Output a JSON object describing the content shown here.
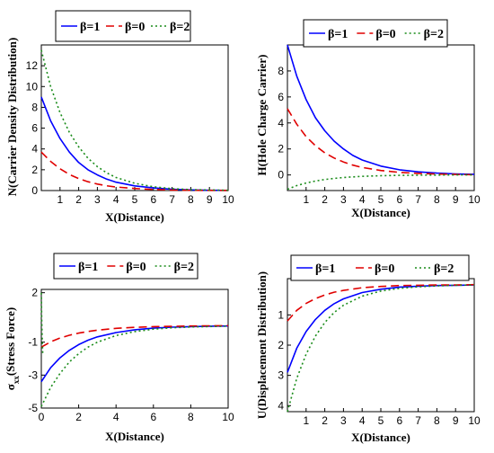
{
  "chart_data": [
    {
      "type": "line",
      "xlabel": "X(Distance)",
      "ylabel": "N(Carrier Density Distribution)",
      "xlim": [
        0,
        10
      ],
      "ylim": [
        0,
        14
      ],
      "xticks": [
        "1",
        "2",
        "3",
        "4",
        "5",
        "6",
        "7",
        "8",
        "9",
        "10"
      ],
      "yticks": [
        "0",
        "2",
        "4",
        "6",
        "8",
        "10",
        "12"
      ],
      "legend": "top",
      "series": [
        {
          "name": "β=1",
          "color": "#0000ff",
          "dash": "solid",
          "x": [
            0,
            0.5,
            1,
            1.5,
            2,
            2.5,
            3,
            3.5,
            4,
            5,
            6,
            7,
            8,
            9,
            10
          ],
          "y": [
            9.0,
            6.7,
            5.0,
            3.7,
            2.7,
            2.0,
            1.5,
            1.1,
            0.8,
            0.45,
            0.25,
            0.12,
            0.06,
            0.03,
            0.02
          ]
        },
        {
          "name": "β=0",
          "color": "#e00000",
          "dash": "dashed",
          "x": [
            0,
            0.5,
            1,
            1.5,
            2,
            2.5,
            3,
            3.5,
            4,
            5,
            6,
            7,
            8,
            9,
            10
          ],
          "y": [
            3.7,
            2.8,
            2.1,
            1.55,
            1.15,
            0.85,
            0.62,
            0.46,
            0.34,
            0.2,
            0.1,
            0.05,
            0.03,
            0.02,
            0.01
          ]
        },
        {
          "name": "β=2",
          "color": "#1a8c1a",
          "dash": "dotted",
          "x": [
            0,
            0.5,
            1,
            1.5,
            2,
            2.5,
            3,
            3.5,
            4,
            5,
            6,
            7,
            8,
            9,
            10
          ],
          "y": [
            13.5,
            10.0,
            7.5,
            5.6,
            4.2,
            3.1,
            2.3,
            1.7,
            1.25,
            0.7,
            0.36,
            0.18,
            0.09,
            0.05,
            0.03
          ]
        }
      ]
    },
    {
      "type": "line",
      "xlabel": "X(Distance)",
      "ylabel": "H(Hole Charge Carrier)",
      "xlim": [
        0,
        10
      ],
      "ylim": [
        -1.2,
        10
      ],
      "xticks": [
        "1",
        "2",
        "3",
        "4",
        "5",
        "6",
        "7",
        "8",
        "9",
        "10"
      ],
      "yticks": [
        "0",
        "2",
        "4",
        "6",
        "8"
      ],
      "legend": "top",
      "series": [
        {
          "name": "β=1",
          "color": "#0000ff",
          "dash": "solid",
          "x": [
            0,
            0.5,
            1,
            1.5,
            2,
            2.5,
            3,
            3.5,
            4,
            5,
            6,
            7,
            8,
            9,
            10
          ],
          "y": [
            10.0,
            7.6,
            5.8,
            4.4,
            3.4,
            2.6,
            2.0,
            1.5,
            1.15,
            0.68,
            0.4,
            0.24,
            0.14,
            0.08,
            0.05
          ]
        },
        {
          "name": "β=0",
          "color": "#e00000",
          "dash": "dashed",
          "x": [
            0,
            0.5,
            1,
            1.5,
            2,
            2.5,
            3,
            3.5,
            4,
            5,
            6,
            7,
            8,
            9,
            10
          ],
          "y": [
            5.1,
            3.9,
            2.95,
            2.25,
            1.7,
            1.3,
            1.0,
            0.76,
            0.58,
            0.34,
            0.2,
            0.12,
            0.07,
            0.04,
            0.02
          ]
        },
        {
          "name": "β=2",
          "color": "#1a8c1a",
          "dash": "dotted",
          "x": [
            0,
            0.5,
            1,
            1.5,
            2,
            2.5,
            3,
            3.5,
            4,
            5,
            6,
            7,
            8,
            9,
            10
          ],
          "y": [
            -1.1,
            -0.82,
            -0.62,
            -0.47,
            -0.35,
            -0.27,
            -0.2,
            -0.15,
            -0.11,
            -0.06,
            -0.03,
            -0.02,
            -0.01,
            0,
            0
          ]
        }
      ]
    },
    {
      "type": "line",
      "xlabel": "X(Distance)",
      "ylabel": "σxx(Stress Force)",
      "ylabel_main": "σ",
      "ylabel_sub": "xx",
      "ylabel_rest": "(Stress Force)",
      "xlim": [
        0,
        10
      ],
      "ylim": [
        -5,
        2.2
      ],
      "xticks": [
        "0",
        "2",
        "4",
        "6",
        "8",
        "10"
      ],
      "yticks": [
        "2",
        "-1",
        "-3",
        "-5"
      ],
      "legend": "top",
      "series": [
        {
          "name": "β=1",
          "color": "#0000ff",
          "dash": "solid",
          "x": [
            0,
            0.5,
            1,
            1.5,
            2,
            2.5,
            3,
            4,
            5,
            6,
            7,
            8,
            9,
            10
          ],
          "y": [
            -3.4,
            -2.55,
            -1.95,
            -1.5,
            -1.15,
            -0.88,
            -0.68,
            -0.42,
            -0.25,
            -0.15,
            -0.09,
            -0.06,
            -0.03,
            -0.02
          ]
        },
        {
          "name": "β=0",
          "color": "#e00000",
          "dash": "dashed",
          "x": [
            0,
            0.5,
            1,
            1.5,
            2,
            2.5,
            3,
            4,
            5,
            6,
            7,
            8,
            9,
            10
          ],
          "y": [
            -1.3,
            -0.98,
            -0.75,
            -0.58,
            -0.45,
            -0.35,
            -0.27,
            -0.16,
            -0.1,
            -0.06,
            -0.04,
            -0.02,
            -0.01,
            0
          ]
        },
        {
          "name": "β=2",
          "color": "#1a8c1a",
          "dash": "dotted",
          "x": [
            0,
            0.5,
            1,
            1.5,
            2,
            2.5,
            3,
            4,
            5,
            6,
            7,
            8,
            9,
            10
          ],
          "y": [
            -4.9,
            -3.75,
            -2.9,
            -2.2,
            -1.7,
            -1.3,
            -1.0,
            -0.6,
            -0.36,
            -0.21,
            -0.13,
            -0.08,
            -0.05,
            -0.03
          ]
        },
        {
          "name": "",
          "color": "#1a8c1a",
          "dash": "dotted",
          "x": [
            0,
            0.02,
            0.05,
            0.08
          ],
          "y": [
            2.0,
            0.5,
            -0.8,
            -1.8
          ]
        }
      ]
    },
    {
      "type": "line",
      "xlabel": "X(Distance)",
      "ylabel": "U(Displacement Distribution)",
      "xlim": [
        0,
        10
      ],
      "ylim": [
        4.2,
        -0.2
      ],
      "y_inverted": true,
      "xticks": [
        "1",
        "2",
        "3",
        "4",
        "5",
        "6",
        "7",
        "8",
        "9",
        "10"
      ],
      "yticks": [
        "1",
        "2",
        "3",
        "4"
      ],
      "legend": "top",
      "series": [
        {
          "name": "β=1",
          "color": "#0000ff",
          "dash": "solid",
          "x": [
            0,
            0.5,
            1,
            1.5,
            2,
            2.5,
            3,
            4,
            5,
            6,
            7,
            8,
            9,
            10
          ],
          "y": [
            2.9,
            2.1,
            1.55,
            1.15,
            0.85,
            0.63,
            0.47,
            0.26,
            0.15,
            0.08,
            0.05,
            0.03,
            0.02,
            0.01
          ]
        },
        {
          "name": "β=0",
          "color": "#e00000",
          "dash": "dashed",
          "x": [
            0,
            0.5,
            1,
            1.5,
            2,
            2.5,
            3,
            4,
            5,
            6,
            7,
            8,
            9,
            10
          ],
          "y": [
            1.2,
            0.85,
            0.62,
            0.46,
            0.34,
            0.25,
            0.19,
            0.1,
            0.06,
            0.03,
            0.02,
            0.01,
            0.01,
            0
          ]
        },
        {
          "name": "β=2",
          "color": "#1a8c1a",
          "dash": "dotted",
          "x": [
            0,
            0.5,
            1,
            1.5,
            2,
            2.5,
            3,
            4,
            5,
            6,
            7,
            8,
            9,
            10
          ],
          "y": [
            4.2,
            3.1,
            2.3,
            1.7,
            1.25,
            0.92,
            0.68,
            0.38,
            0.21,
            0.12,
            0.07,
            0.04,
            0.02,
            0.01
          ]
        }
      ]
    }
  ]
}
